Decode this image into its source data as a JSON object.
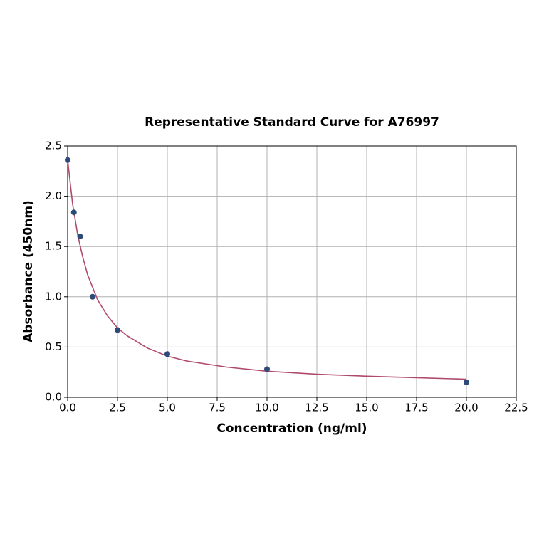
{
  "chart_data": {
    "type": "scatter",
    "title": "Representative Standard Curve for A76997",
    "x_label": "Concentration (ng/ml)",
    "y_label": "Absorbance (450nm)",
    "series": [
      {
        "mode": "line",
        "color": "#b04a6c",
        "x": [
          0,
          0.25,
          0.5,
          0.75,
          1,
          1.5,
          2,
          2.5,
          3,
          4,
          5,
          6,
          8,
          10,
          12.5,
          15,
          17.5,
          20
        ],
        "values": [
          2.36,
          1.92,
          1.62,
          1.4,
          1.22,
          0.97,
          0.81,
          0.69,
          0.61,
          0.49,
          0.41,
          0.36,
          0.3,
          0.26,
          0.23,
          0.21,
          0.195,
          0.18
        ]
      },
      {
        "mode": "markers",
        "color": "#2e4a78",
        "x": [
          0,
          0.3125,
          0.625,
          1.25,
          2.5,
          5,
          10,
          20
        ],
        "values": [
          2.36,
          1.84,
          1.6,
          1.0,
          0.67,
          0.43,
          0.28,
          0.15
        ]
      }
    ],
    "xlim": [
      0,
      22.5
    ],
    "xticks": [
      {
        "value": 0,
        "label": "0.0"
      },
      2.5,
      {
        "value": 5,
        "label": "5.0"
      },
      7.5,
      {
        "value": 10,
        "label": "10.0"
      },
      12.5,
      {
        "value": 15,
        "label": "15.0"
      },
      17.5,
      {
        "value": 20,
        "label": "20.0"
      },
      22.5
    ],
    "ylim": [
      0,
      2.5
    ],
    "yticks": [
      {
        "value": 0,
        "label": "0.0"
      },
      0.5,
      {
        "value": 1,
        "label": "1.0"
      },
      1.5,
      {
        "value": 2,
        "label": "2.0"
      },
      2.5
    ],
    "grid": true
  }
}
